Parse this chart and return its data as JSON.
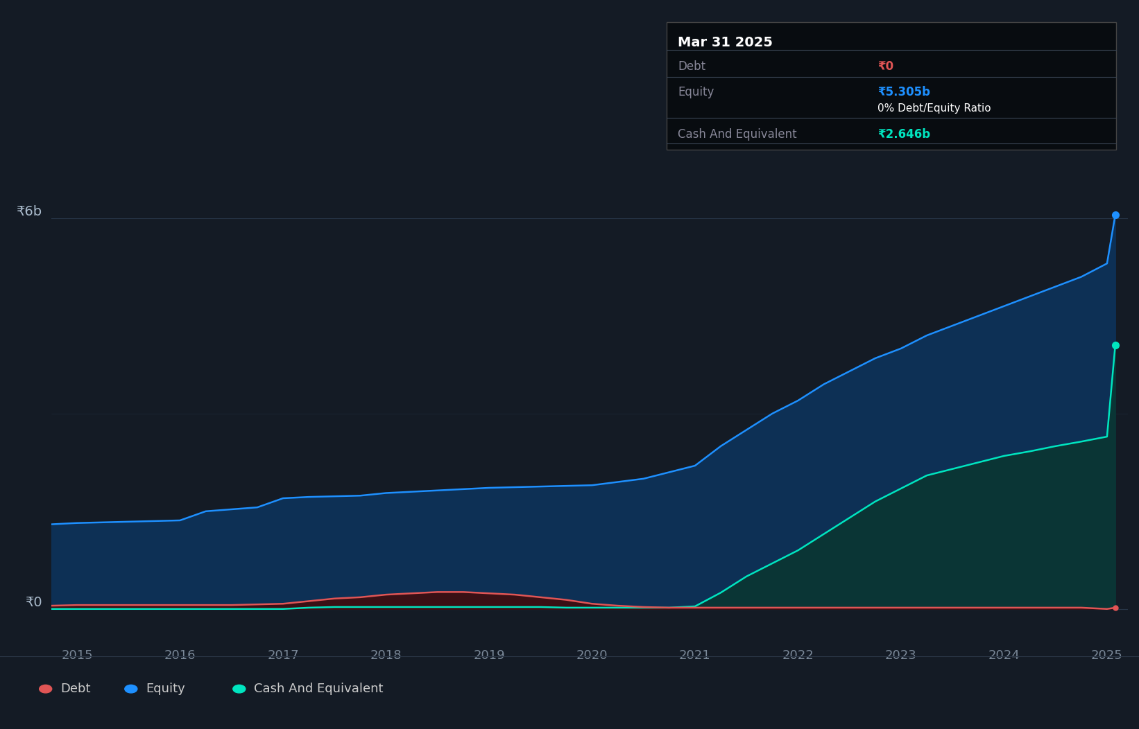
{
  "bg_color": "#141b25",
  "plot_bg_color": "#141b25",
  "equity_color": "#1e90ff",
  "debt_color": "#e05555",
  "cash_color": "#00e5c0",
  "equity_fill": "#0d3055",
  "cash_fill": "#0a3535",
  "debt_fill": "#3a1015",
  "grid_color": "#2e3d52",
  "tooltip_bg": "#080c10",
  "tooltip_border": "#3a4555",
  "ylabel_6b": "₹6b",
  "ylabel_0": "₹0",
  "x_ticks": [
    2015,
    2016,
    2017,
    2018,
    2019,
    2020,
    2021,
    2022,
    2023,
    2024,
    2025
  ],
  "years": [
    2014.75,
    2015.0,
    2015.25,
    2015.5,
    2015.75,
    2016.0,
    2016.25,
    2016.5,
    2016.75,
    2017.0,
    2017.25,
    2017.5,
    2017.75,
    2018.0,
    2018.25,
    2018.5,
    2018.75,
    2019.0,
    2019.25,
    2019.5,
    2019.75,
    2020.0,
    2020.25,
    2020.5,
    2020.75,
    2021.0,
    2021.25,
    2021.5,
    2021.75,
    2022.0,
    2022.25,
    2022.5,
    2022.75,
    2023.0,
    2023.25,
    2023.5,
    2023.75,
    2024.0,
    2024.25,
    2024.5,
    2024.75,
    2025.0,
    2025.08
  ],
  "equity_values": [
    1.3,
    1.32,
    1.33,
    1.34,
    1.35,
    1.36,
    1.5,
    1.53,
    1.56,
    1.7,
    1.72,
    1.73,
    1.74,
    1.78,
    1.8,
    1.82,
    1.84,
    1.86,
    1.87,
    1.88,
    1.89,
    1.9,
    1.95,
    2.0,
    2.1,
    2.2,
    2.5,
    2.75,
    3.0,
    3.2,
    3.45,
    3.65,
    3.85,
    4.0,
    4.2,
    4.35,
    4.5,
    4.65,
    4.8,
    4.95,
    5.1,
    5.305,
    6.05
  ],
  "debt_values": [
    0.05,
    0.06,
    0.06,
    0.06,
    0.06,
    0.06,
    0.06,
    0.06,
    0.07,
    0.08,
    0.12,
    0.16,
    0.18,
    0.22,
    0.24,
    0.26,
    0.26,
    0.24,
    0.22,
    0.18,
    0.14,
    0.08,
    0.05,
    0.03,
    0.02,
    0.02,
    0.02,
    0.02,
    0.02,
    0.02,
    0.02,
    0.02,
    0.02,
    0.02,
    0.02,
    0.02,
    0.02,
    0.02,
    0.02,
    0.02,
    0.02,
    0.0,
    0.02
  ],
  "cash_values": [
    0.0,
    0.0,
    0.0,
    0.0,
    0.0,
    0.0,
    0.0,
    0.0,
    0.0,
    0.0,
    0.02,
    0.03,
    0.03,
    0.03,
    0.03,
    0.03,
    0.03,
    0.03,
    0.03,
    0.03,
    0.02,
    0.02,
    0.02,
    0.02,
    0.02,
    0.04,
    0.25,
    0.5,
    0.7,
    0.9,
    1.15,
    1.4,
    1.65,
    1.85,
    2.05,
    2.15,
    2.25,
    2.35,
    2.42,
    2.5,
    2.57,
    2.646,
    4.05
  ],
  "tooltip": {
    "date": "Mar 31 2025",
    "debt_label": "Debt",
    "debt_value": "₹0",
    "equity_label": "Equity",
    "equity_value": "₹5.305b",
    "ratio_text": "0% Debt/Equity Ratio",
    "cash_label": "Cash And Equivalent",
    "cash_value": "₹2.646b"
  },
  "legend": [
    {
      "label": "Debt",
      "color": "#e05555"
    },
    {
      "label": "Equity",
      "color": "#1e90ff"
    },
    {
      "label": "Cash And Equivalent",
      "color": "#00e5c0"
    }
  ]
}
